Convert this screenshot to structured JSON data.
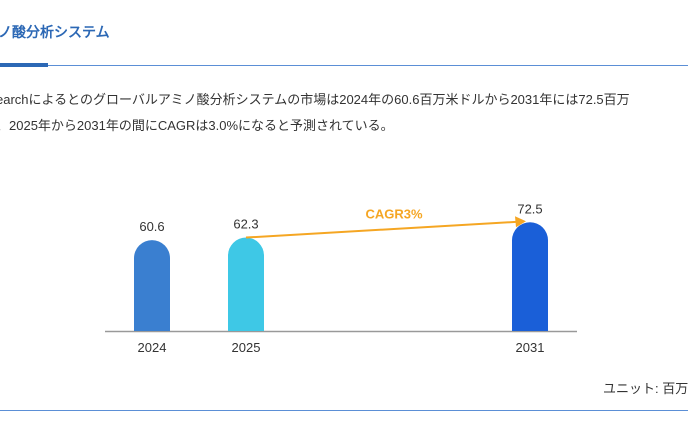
{
  "header": {
    "title": "ノ酸分析システム"
  },
  "description": {
    "line1": "earchによるとのグローバルアミノ酸分析システムの市場は2024年の60.6百万米ドルから2031年には72.5百万",
    "line2": "、2025年から2031年の間にCAGRは3.0%になると予測されている。"
  },
  "footer": {
    "unit": "ユニット: 百万"
  },
  "chart_data": {
    "type": "bar",
    "categories": [
      "2024",
      "2025",
      "2031"
    ],
    "values": [
      60.6,
      62.3,
      72.5
    ],
    "colors": [
      "#3a7fd0",
      "#3ec8e6",
      "#1a5fd8"
    ],
    "annotation": {
      "text": "CAGR3%",
      "from": "2025",
      "to": "2031",
      "color": "#f5a623"
    },
    "ylim": [
      0,
      90
    ],
    "grid": false
  }
}
